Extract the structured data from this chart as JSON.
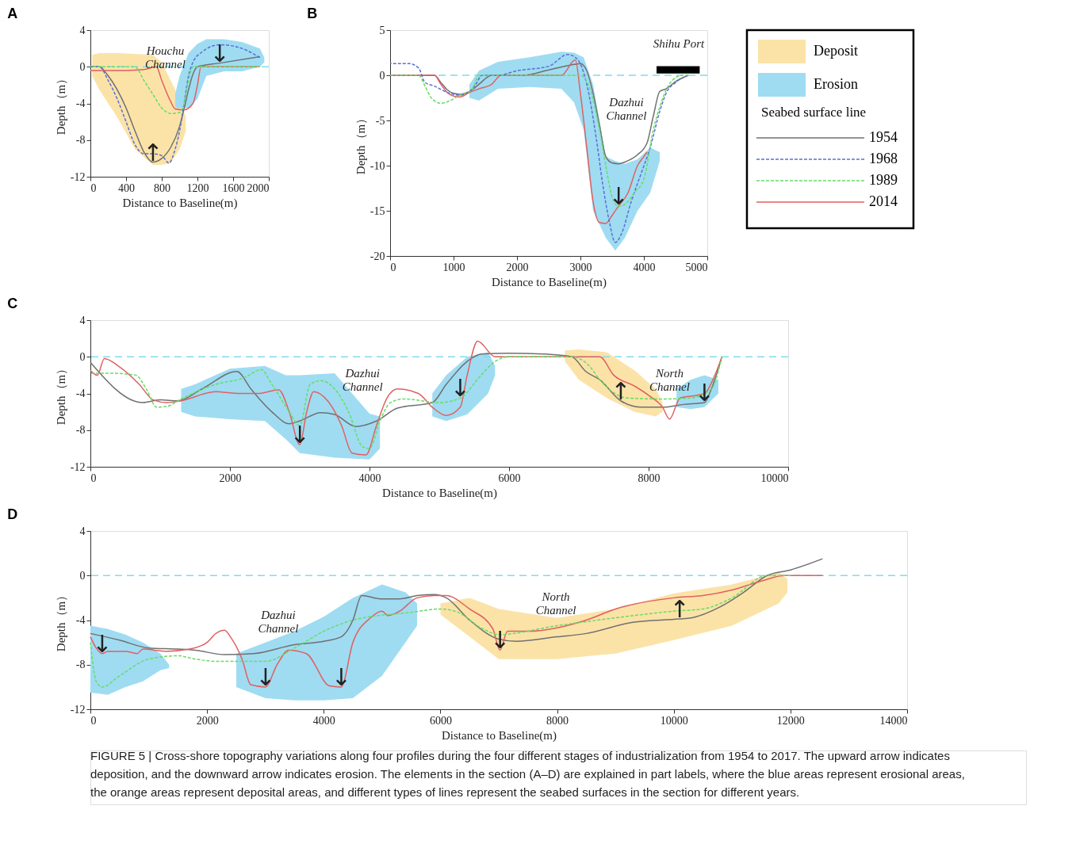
{
  "chart_data": [
    {
      "type": "line",
      "title": "A",
      "xlabel": "Distance to Baseline(m)",
      "ylabel": "Depth（m）",
      "xlim": [
        0,
        2000
      ],
      "xticks": [
        0,
        400,
        800,
        1200,
        1600,
        2000
      ],
      "ylim": [
        -12,
        4
      ],
      "yticks": [
        -12,
        -8,
        -4,
        0,
        4
      ],
      "ref_lines": [
        {
          "axis": "y",
          "value": 0,
          "color": "#80dcf0",
          "line_style": "dashed"
        }
      ],
      "series": [
        {
          "name": "Deposit",
          "type": "area",
          "color": "#fbe3a8",
          "x": [
            20,
            100,
            300,
            500,
            700,
            800,
            900,
            1000,
            1070
          ],
          "values": [
            null,
            null,
            null,
            null,
            null,
            null,
            null,
            null,
            null
          ],
          "upper": [
            1.3,
            1.5,
            1.5,
            1.4,
            1.3,
            0.5,
            -1.5,
            -3.5,
            -5.5
          ],
          "lower": [
            -1,
            -2.5,
            -5.5,
            -9,
            -10.7,
            -10.7,
            -10.5,
            -9,
            -7
          ]
        },
        {
          "name": "Erosion",
          "type": "area",
          "color": "#9fdcf2",
          "x": [
            950,
            1000,
            1100,
            1200,
            1300,
            1500,
            1700,
            1900,
            1950
          ],
          "values": [
            null,
            null,
            null,
            null,
            null,
            null,
            null,
            null,
            null
          ],
          "upper": [
            -3,
            -1,
            1.5,
            2.5,
            3,
            3,
            2.7,
            2,
            1
          ],
          "lower": [
            -4.5,
            -4.5,
            -4.5,
            -3.5,
            -1,
            -0.5,
            -0.5,
            0,
            0.5
          ]
        },
        {
          "color": "#707070",
          "line_style": "solid",
          "x": [
            0,
            100,
            200,
            300,
            400,
            500,
            600,
            700,
            800,
            900,
            1000,
            1050,
            1100,
            1150,
            1200,
            1450,
            1900
          ],
          "values": [
            0,
            0,
            -1,
            -2.5,
            -4.5,
            -7,
            -9.3,
            -10.4,
            -10,
            -8.8,
            -6.5,
            -4.6,
            -2.5,
            -0.8,
            0,
            0.4,
            1.1
          ]
        },
        {
          "color": "#5b6fd6",
          "line_style": "dashed",
          "x": [
            0,
            100,
            200,
            300,
            400,
            500,
            600,
            700,
            800,
            880,
            950,
            1000,
            1050,
            1100,
            1150,
            1250,
            1450,
            1700,
            1900
          ],
          "values": [
            0,
            0,
            -1.5,
            -3.5,
            -6,
            -8.5,
            -9.5,
            -9.5,
            -9.7,
            -10.5,
            -9,
            -7,
            -4,
            -1,
            0.5,
            1.6,
            2.4,
            2,
            1
          ]
        },
        {
          "color": "#66dd66",
          "line_style": "dashed",
          "x": [
            0,
            500,
            600,
            700,
            800,
            900,
            1000,
            1050,
            1100,
            1150,
            1900
          ],
          "values": [
            0,
            0,
            -1.5,
            -3,
            -4.5,
            -5.1,
            -5,
            -4,
            -1.5,
            0,
            0
          ]
        },
        {
          "color": "#e06060",
          "line_style": "solid",
          "x": [
            0,
            400,
            600,
            740,
            800,
            900,
            950,
            1050,
            1150,
            1200,
            1240,
            1900
          ],
          "values": [
            -0.4,
            -0.4,
            -0.3,
            0,
            -1.5,
            -3.8,
            -4.6,
            -4.7,
            -4,
            -2,
            0,
            0
          ]
        }
      ],
      "annotations": [
        "Houchu\nChannel",
        {
          "text": "↑",
          "x": 700,
          "y": -10.4
        },
        {
          "text": "↓",
          "x": 1450,
          "y": 0.4
        }
      ]
    },
    {
      "type": "line",
      "title": "B",
      "xlabel": "Distance to Baseline(m)",
      "ylabel": "Depth（m）",
      "xlim": [
        0,
        5000
      ],
      "xticks": [
        0,
        1000,
        2000,
        3000,
        4000,
        5000
      ],
      "ylim": [
        -20,
        5
      ],
      "yticks": [
        -20,
        -15,
        -10,
        -5,
        0,
        5
      ],
      "legend": "right",
      "legend_title": "Seabed surface line",
      "ref_lines": [
        {
          "axis": "y",
          "value": 0,
          "color": "#80dcf0",
          "line_style": "dashed"
        }
      ],
      "series": [
        {
          "type": "area",
          "color": "#9fdcf2",
          "x": [
            1250,
            1400,
            1700,
            2200,
            2700,
            2900,
            3050,
            3200,
            3400,
            3550,
            3700,
            3900,
            4100,
            4250
          ],
          "values": [
            null,
            null,
            null,
            null,
            null,
            null,
            null,
            null,
            null,
            null,
            null,
            null,
            null,
            null
          ],
          "upper": [
            -1,
            0.5,
            1.5,
            2,
            2.6,
            2.5,
            2,
            -1,
            -9,
            -9.5,
            -9.8,
            -9.3,
            -8,
            -8.5
          ],
          "lower": [
            -2.5,
            -2.8,
            -1.5,
            -1.3,
            -1.5,
            -3,
            -6,
            -15,
            -18,
            -19.4,
            -18,
            -15,
            -13,
            -9.5
          ]
        },
        {
          "type": "area",
          "color": "#000000",
          "x": [
            4200,
            4880
          ],
          "values": [
            null,
            null
          ],
          "upper": [
            1,
            1
          ],
          "lower": [
            0.2,
            0.2
          ]
        },
        {
          "name": "1954",
          "color": "#707070",
          "line_style": "solid",
          "x": [
            0,
            700,
            800,
            900,
            1000,
            1100,
            1250,
            1400,
            1600,
            2100,
            2500,
            2900,
            3000,
            3100,
            3200,
            3300,
            3400,
            3500,
            3600,
            3700,
            3900,
            4050,
            4150,
            4250,
            4350,
            4500,
            4700
          ],
          "values": [
            0,
            0,
            -0.8,
            -1.6,
            -2,
            -2.1,
            -1.8,
            -1,
            0,
            0,
            0.6,
            1.2,
            1.3,
            0.5,
            -2,
            -5.5,
            -9,
            -9.7,
            -9.8,
            -9.6,
            -8.8,
            -7.5,
            -4.5,
            -1.8,
            -1.5,
            -0.7,
            0
          ]
        },
        {
          "name": "1968",
          "color": "#5b6fd6",
          "line_style": "dashed",
          "x": [
            0,
            300,
            450,
            550,
            700,
            900,
            1100,
            1250,
            1350,
            1450,
            1700,
            2000,
            2500,
            2800,
            2950,
            3100,
            3250,
            3350,
            3450,
            3550,
            3650,
            3800,
            3950,
            4100,
            4250,
            4350,
            4500,
            4700
          ],
          "values": [
            1.3,
            1.3,
            0.8,
            -0.8,
            -1.2,
            -1.9,
            -2.2,
            -1.8,
            -1,
            0,
            0,
            0.5,
            1,
            2.3,
            1.8,
            -1,
            -7,
            -12,
            -16,
            -18.5,
            -17.5,
            -14,
            -11,
            -8,
            -4,
            -2,
            -0.8,
            0
          ]
        },
        {
          "name": "1989",
          "color": "#66dd66",
          "line_style": "dashed",
          "x": [
            0,
            450,
            550,
            650,
            800,
            950,
            1100,
            1300,
            1400,
            3000,
            3150,
            3300,
            3400,
            3500,
            3600,
            3700,
            3850,
            4000,
            4150,
            4250,
            4400,
            4600,
            4700
          ],
          "values": [
            0,
            0,
            -1.2,
            -2.5,
            -3.1,
            -2.8,
            -2.2,
            -1.5,
            0,
            0,
            -1.5,
            -6,
            -10,
            -13.5,
            -14.5,
            -14.3,
            -13,
            -11.5,
            -6,
            -3.5,
            -1,
            0,
            0
          ]
        },
        {
          "name": "2014",
          "color": "#e06060",
          "line_style": "solid",
          "x": [
            0,
            700,
            800,
            900,
            1000,
            1100,
            1250,
            1400,
            1600,
            1750,
            2700,
            2920,
            3000,
            3100,
            3200,
            3300,
            3400,
            3500,
            3600,
            3750,
            3900,
            4000,
            4050
          ],
          "values": [
            0,
            0,
            -1,
            -1.9,
            -2.3,
            -2.4,
            -1.9,
            -1.5,
            -1,
            0,
            0,
            1.7,
            -2,
            -8,
            -14,
            -16.3,
            -16.4,
            -15.5,
            -14.5,
            -13,
            -10,
            -9,
            -8.5
          ]
        }
      ],
      "annotations": [
        "Dazhui\nChannel",
        "Shihu Port",
        {
          "text": "↓",
          "x": 3600,
          "y": -14.5
        }
      ]
    },
    {
      "type": "line",
      "title": "C",
      "xlabel": "Distance to Baseline(m)",
      "ylabel": "Depth（m）",
      "xlim": [
        0,
        10000
      ],
      "xticks": [
        0,
        2000,
        4000,
        6000,
        8000,
        10000
      ],
      "ylim": [
        -12,
        4
      ],
      "yticks": [
        -12,
        -8,
        -4,
        0,
        4
      ],
      "ref_lines": [
        {
          "axis": "y",
          "value": 0,
          "color": "#80dcf0",
          "line_style": "dashed"
        }
      ],
      "series": [
        {
          "type": "area",
          "color": "#9fdcf2",
          "x": [
            1300,
            1500,
            2000,
            2500,
            2800,
            3000,
            3500,
            4000,
            4150
          ],
          "values": [
            null,
            null,
            null,
            null,
            null,
            null,
            null,
            null,
            null
          ],
          "upper": [
            -3.5,
            -3,
            -1.3,
            -1,
            -2,
            -2,
            -1.8,
            -6.2,
            -6.5
          ],
          "lower": [
            -6,
            -6.5,
            -6.8,
            -7,
            -9,
            -10.5,
            -11,
            -11.2,
            -10
          ]
        },
        {
          "type": "area",
          "color": "#9fdcf2",
          "x": [
            4900,
            5100,
            5400,
            5700,
            5800
          ],
          "values": [
            null,
            null,
            null,
            null,
            null
          ],
          "upper": [
            -4,
            -2,
            0,
            0.5,
            -1
          ],
          "lower": [
            -6.5,
            -7,
            -6.3,
            -4,
            -2
          ]
        },
        {
          "type": "area",
          "color": "#9fdcf2",
          "x": [
            8400,
            8600,
            8800,
            9000
          ],
          "values": [
            null,
            null,
            null,
            null
          ],
          "upper": [
            -3.5,
            -2.5,
            -2,
            -2.5
          ],
          "lower": [
            -5.5,
            -5.7,
            -5.5,
            -4
          ]
        },
        {
          "type": "area",
          "color": "#fbe3a8",
          "x": [
            6800,
            7000,
            7400,
            7800,
            8100,
            8200
          ],
          "values": [
            null,
            null,
            null,
            null,
            null,
            null
          ],
          "upper": [
            0.7,
            0.8,
            0.5,
            -1.5,
            -3.5,
            -5
          ],
          "lower": [
            -0.5,
            -2.5,
            -4.5,
            -6,
            -6.5,
            -6
          ]
        },
        {
          "color": "#707070",
          "line_style": "solid",
          "x": [
            0,
            750,
            1000,
            1250,
            1600,
            2100,
            2300,
            2600,
            2850,
            3000,
            3300,
            3500,
            3800,
            4100,
            4400,
            4900,
            5100,
            5400,
            5600,
            6000,
            6500,
            6900,
            7100,
            7300,
            7600,
            7900,
            8200,
            8500,
            8800,
            8900,
            9050
          ],
          "values": [
            -0.6,
            -5,
            -4.7,
            -4.8,
            -3.5,
            -1.6,
            -3.5,
            -6,
            -7.3,
            -7,
            -6.1,
            -6.3,
            -7.6,
            -7,
            -5.6,
            -5,
            -3,
            -0.5,
            0.3,
            0.4,
            0.3,
            0,
            -1.6,
            -2.5,
            -4.8,
            -5.5,
            -5.5,
            -5.2,
            -5,
            -3.5,
            0
          ]
        },
        {
          "color": "#66dd66",
          "line_style": "dashed",
          "x": [
            0,
            300,
            650,
            800,
            950,
            1100,
            1300,
            1800,
            2200,
            2450,
            2600,
            2850,
            3000,
            3150,
            3300,
            3500,
            3700,
            3900,
            4000,
            4150,
            4300,
            4500,
            5000,
            5300,
            5600,
            5800,
            6000,
            6900,
            7150,
            7300,
            7700,
            8200,
            8600,
            8900,
            9050
          ],
          "values": [
            -1.8,
            -1.8,
            -2,
            -3.5,
            -5.5,
            -5.4,
            -4.6,
            -3,
            -2.3,
            -1.4,
            -3,
            -6,
            -7.5,
            -3,
            -2.6,
            -3.5,
            -6,
            -9.8,
            -10,
            -7,
            -5,
            -4.6,
            -5,
            -4.5,
            -2,
            -0.5,
            0,
            0,
            -1,
            -2.5,
            -4.5,
            -4.6,
            -4.5,
            -3.5,
            0
          ]
        },
        {
          "color": "#e06060",
          "line_style": "solid",
          "x": [
            0,
            100,
            200,
            400,
            700,
            900,
            1100,
            1300,
            1800,
            2100,
            2400,
            2700,
            2850,
            3000,
            3100,
            3200,
            3400,
            3600,
            3750,
            3950,
            4100,
            4250,
            4400,
            4700,
            4900,
            5100,
            5300,
            5400,
            5550,
            5800,
            6900,
            7300,
            7500,
            7800,
            8000,
            8200,
            8300,
            8450,
            8600,
            8800,
            8950,
            9050
          ],
          "values": [
            -1.5,
            -2,
            -0.2,
            -1,
            -3,
            -4.7,
            -5,
            -4.8,
            -3.8,
            -4,
            -4,
            -3.6,
            -6,
            -9.6,
            -6,
            -3.8,
            -4.8,
            -7.5,
            -10.5,
            -10.7,
            -7.5,
            -4.5,
            -3.5,
            -4,
            -5.5,
            -6.4,
            -5.5,
            -2,
            1.7,
            0,
            0,
            0,
            -2,
            -3.2,
            -4.2,
            -5.5,
            -6.8,
            -4.5,
            -4.3,
            -4,
            -2,
            0
          ]
        }
      ],
      "annotations": [
        "Dazhui\nChannel",
        "North\nChannel",
        {
          "text": "↓",
          "x": 3000,
          "y": -9.6
        },
        {
          "text": "↓",
          "x": 5300,
          "y": -4.5
        },
        {
          "text": "↓",
          "x": 8800,
          "y": -5
        },
        {
          "text": "↑",
          "x": 7600,
          "y": -4.8
        }
      ]
    },
    {
      "type": "line",
      "title": "D",
      "xlabel": "Distance to Baseline(m)",
      "ylabel": "Depth（m）",
      "xlim": [
        0,
        14000
      ],
      "xticks": [
        0,
        2000,
        4000,
        6000,
        8000,
        10000,
        12000,
        14000
      ],
      "ylim": [
        -12,
        4
      ],
      "yticks": [
        -12,
        -8,
        -4,
        0,
        4
      ],
      "ref_lines": [
        {
          "axis": "y",
          "value": 0,
          "color": "#80dcf0",
          "line_style": "dashed"
        }
      ],
      "series": [
        {
          "type": "area",
          "color": "#9fdcf2",
          "x": [
            0,
            300,
            600,
            900,
            1200,
            1350
          ],
          "values": [
            null,
            null,
            null,
            null,
            null,
            null
          ],
          "upper": [
            -4.5,
            -4.8,
            -5.3,
            -6,
            -7,
            -8
          ],
          "lower": [
            -10.5,
            -10.7,
            -10,
            -9.5,
            -8.5,
            -8.3
          ]
        },
        {
          "type": "area",
          "color": "#9fdcf2",
          "x": [
            2500,
            3000,
            3500,
            4000,
            4500,
            5000,
            5400,
            5600
          ],
          "values": [
            null,
            null,
            null,
            null,
            null,
            null,
            null,
            null
          ],
          "upper": [
            -7,
            -6,
            -5,
            -3.7,
            -2,
            -0.8,
            -1.5,
            -2.5
          ],
          "lower": [
            -10,
            -11,
            -11.2,
            -11.2,
            -11,
            -9,
            -6,
            -4.5
          ]
        },
        {
          "type": "area",
          "color": "#fbe3a8",
          "x": [
            6000,
            6500,
            7000,
            8000,
            9000,
            10000,
            11000,
            11800,
            11950
          ],
          "values": [
            null,
            null,
            null,
            null,
            null,
            null,
            null,
            null,
            null
          ],
          "upper": [
            -2.5,
            -2,
            -3,
            -3.8,
            -3,
            -1.6,
            -0.8,
            0.3,
            -0.3
          ],
          "lower": [
            -3.5,
            -5.5,
            -7.5,
            -7.5,
            -7,
            -5.8,
            -4.5,
            -2.5,
            -1.5
          ]
        },
        {
          "color": "#707070",
          "line_style": "solid",
          "x": [
            0,
            500,
            1000,
            1500,
            1800,
            2300,
            2800,
            3500,
            4000,
            4300,
            4500,
            4650,
            5000,
            5300,
            5600,
            5900,
            6100,
            6500,
            7000,
            7300,
            8000,
            8500,
            9300,
            10100,
            10300,
            10800,
            11200,
            11600,
            12000,
            12550
          ],
          "values": [
            -5.2,
            -5.8,
            -6.5,
            -6.6,
            -6.7,
            -7.1,
            -7,
            -6.2,
            -5.9,
            -5.5,
            -4,
            -1.8,
            -2.1,
            -2.1,
            -1.8,
            -1.7,
            -2,
            -4,
            -5.7,
            -5.9,
            -5.5,
            -5.2,
            -4.2,
            -3.9,
            -3.8,
            -2.8,
            -1.5,
            0,
            0.5,
            1.5
          ]
        },
        {
          "color": "#66dd66",
          "line_style": "dashed",
          "x": [
            0,
            100,
            200,
            500,
            1000,
            1500,
            1800,
            2200,
            3000,
            3500,
            4000,
            4500,
            5500,
            6000,
            6300,
            6700,
            7000,
            8000,
            9000,
            10000,
            10500,
            11000,
            11600,
            12000
          ],
          "values": [
            -6,
            -9.5,
            -10,
            -9,
            -7.5,
            -7.2,
            -7.5,
            -7.7,
            -7.7,
            -6.5,
            -5,
            -4,
            -3.3,
            -3,
            -3.3,
            -4.7,
            -5.3,
            -4.5,
            -3.8,
            -3.2,
            -3,
            -2,
            0,
            0
          ]
        },
        {
          "color": "#e06060",
          "line_style": "solid",
          "x": [
            0,
            100,
            200,
            300,
            600,
            800,
            900,
            1300,
            1700,
            2000,
            2150,
            2300,
            2400,
            2600,
            2750,
            3000,
            3200,
            3400,
            3700,
            4100,
            4300,
            4500,
            4800,
            5000,
            5100,
            5300,
            5600,
            5900,
            6100,
            6500,
            6900,
            7020,
            7150,
            7500,
            8500,
            9000,
            10000,
            10500,
            11000,
            11500,
            11900,
            12550
          ],
          "values": [
            -5.5,
            -6.5,
            -7,
            -6.8,
            -6.8,
            -7,
            -6.6,
            -6.8,
            -6.6,
            -6,
            -5.2,
            -4.9,
            -5.5,
            -7.5,
            -9.8,
            -10,
            -8,
            -6.7,
            -7,
            -9.9,
            -10,
            -6,
            -3.8,
            -3.2,
            -3.6,
            -3.2,
            -2,
            -1.8,
            -1.8,
            -3,
            -4.8,
            -6.7,
            -5,
            -5,
            -4,
            -3,
            -2,
            -1.8,
            -1.3,
            -0.5,
            0,
            0
          ]
        }
      ],
      "annotations": [
        "Dazhui\nChannel",
        "North\nChannel",
        {
          "text": "↓",
          "x": 200,
          "y": -7
        },
        {
          "text": "↓",
          "x": 3000,
          "y": -10
        },
        {
          "text": "↓",
          "x": 4300,
          "y": -10
        },
        {
          "text": "↓",
          "x": 7020,
          "y": -6.7
        },
        {
          "text": "↑",
          "x": 10100,
          "y": -3.9
        }
      ]
    },
    {
      "type": "other",
      "annotations": [
        "FIGURE 5 | Cross-shore topography variations along four profiles during the four different stages of industrialization from 1954 to 2017. The upward arrow indicates deposition, and the downward arrow indicates erosion. The elements in the section (A–D) are explained in part labels, where the blue areas represent erosional areas, the orange areas represent deposital areas, and different types of lines represent the seabed surfaces in the section for different years."
      ]
    }
  ]
}
